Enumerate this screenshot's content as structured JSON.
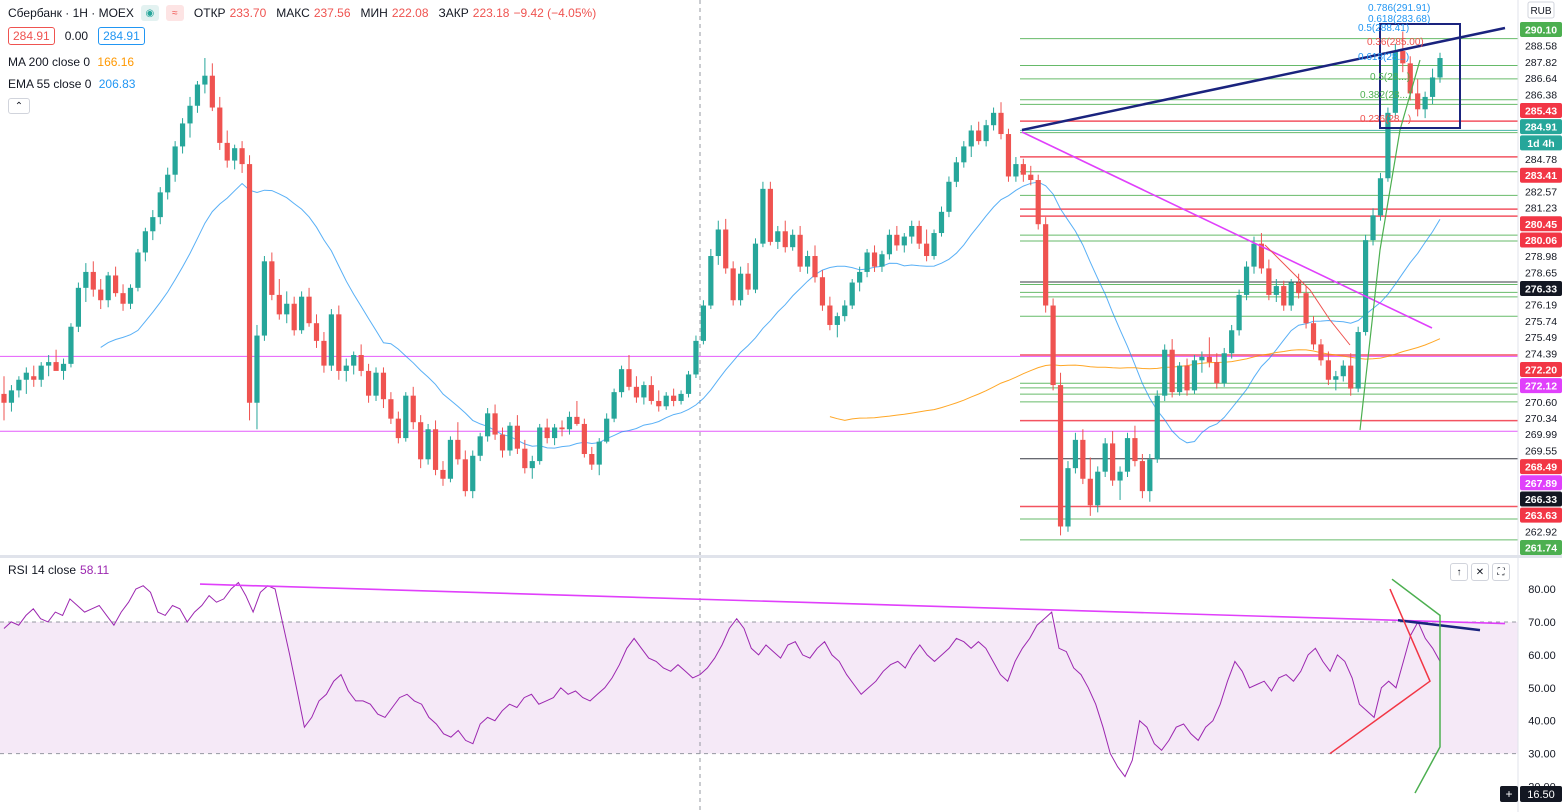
{
  "header": {
    "symbol": "Сбербанк · 1H · MOEX",
    "ohlc": [
      {
        "label": "ОТКР",
        "value": "233.70"
      },
      {
        "label": "МАКС",
        "value": "237.56"
      },
      {
        "label": "МИН",
        "value": "222.08"
      },
      {
        "label": "ЗАКР",
        "value": "223.18"
      }
    ],
    "change": "−9.42 (−4.05%)",
    "bid": "284.91",
    "spread": "0.00",
    "ask": "284.91"
  },
  "indicators": [
    {
      "name": "MA 200 close 0",
      "value": "166.16",
      "color": "#ff9800"
    },
    {
      "name": "EMA 55 close 0",
      "value": "206.83",
      "color": "#2196f3"
    }
  ],
  "currency": "RUB",
  "price_scale": {
    "ticks": [
      {
        "label": "290.10",
        "bg": "#4caf50",
        "fg": "#ffffff",
        "kind": "green"
      },
      {
        "label": "288.58",
        "bg": "#ffffff",
        "fg": "#131722",
        "kind": "plain"
      },
      {
        "label": "287.82",
        "bg": "#ffffff",
        "fg": "#131722",
        "kind": "plain"
      },
      {
        "label": "286.64",
        "bg": "#ffffff",
        "fg": "#131722",
        "kind": "plain"
      },
      {
        "label": "286.38",
        "bg": "#ffffff",
        "fg": "#131722",
        "kind": "plain"
      },
      {
        "label": "285.43",
        "bg": "#f23645",
        "fg": "#ffffff",
        "kind": "red"
      },
      {
        "label": "284.91",
        "bg": "#26a69a",
        "fg": "#ffffff",
        "kind": "teal"
      },
      {
        "label": "1d 4h",
        "bg": "#26a69a",
        "fg": "#ffffff",
        "kind": "teal"
      },
      {
        "label": "284.78",
        "bg": "#ffffff",
        "fg": "#131722",
        "kind": "plain"
      },
      {
        "label": "283.41",
        "bg": "#f23645",
        "fg": "#ffffff",
        "kind": "red"
      },
      {
        "label": "282.57",
        "bg": "#ffffff",
        "fg": "#131722",
        "kind": "plain"
      },
      {
        "label": "281.23",
        "bg": "#ffffff",
        "fg": "#131722",
        "kind": "plain"
      },
      {
        "label": "280.45",
        "bg": "#f23645",
        "fg": "#ffffff",
        "kind": "red"
      },
      {
        "label": "280.06",
        "bg": "#f23645",
        "fg": "#ffffff",
        "kind": "red"
      },
      {
        "label": "278.98",
        "bg": "#ffffff",
        "fg": "#131722",
        "kind": "plain"
      },
      {
        "label": "278.65",
        "bg": "#ffffff",
        "fg": "#131722",
        "kind": "plain"
      },
      {
        "label": "276.33",
        "bg": "#131722",
        "fg": "#ffffff",
        "kind": "dark"
      },
      {
        "label": "276.19",
        "bg": "#ffffff",
        "fg": "#131722",
        "kind": "plain"
      },
      {
        "label": "275.74",
        "bg": "#ffffff",
        "fg": "#131722",
        "kind": "plain"
      },
      {
        "label": "275.49",
        "bg": "#ffffff",
        "fg": "#131722",
        "kind": "plain"
      },
      {
        "label": "274.39",
        "bg": "#ffffff",
        "fg": "#131722",
        "kind": "plain"
      },
      {
        "label": "272.20",
        "bg": "#f23645",
        "fg": "#ffffff",
        "kind": "red"
      },
      {
        "label": "272.12",
        "bg": "#e040fb",
        "fg": "#ffffff",
        "kind": "magenta"
      },
      {
        "label": "270.60",
        "bg": "#ffffff",
        "fg": "#131722",
        "kind": "plain"
      },
      {
        "label": "270.34",
        "bg": "#ffffff",
        "fg": "#131722",
        "kind": "plain"
      },
      {
        "label": "269.99",
        "bg": "#ffffff",
        "fg": "#131722",
        "kind": "plain"
      },
      {
        "label": "269.55",
        "bg": "#ffffff",
        "fg": "#131722",
        "kind": "plain"
      },
      {
        "label": "268.49",
        "bg": "#f23645",
        "fg": "#ffffff",
        "kind": "red"
      },
      {
        "label": "267.89",
        "bg": "#e040fb",
        "fg": "#ffffff",
        "kind": "magenta"
      },
      {
        "label": "266.33",
        "bg": "#131722",
        "fg": "#ffffff",
        "kind": "dark"
      },
      {
        "label": "263.63",
        "bg": "#f23645",
        "fg": "#ffffff",
        "kind": "red"
      },
      {
        "label": "262.92",
        "bg": "#ffffff",
        "fg": "#131722",
        "kind": "plain"
      },
      {
        "label": "261.74",
        "bg": "#4caf50",
        "fg": "#ffffff",
        "kind": "green"
      }
    ]
  },
  "fib_labels": [
    "0.786(291.91)",
    "0.618(283.68)",
    "0.5(288.41)",
    "0.36(285.00)",
    "0.618(28...)",
    "0.5(28...)",
    "0.382(28...)",
    "0.236(28...)"
  ],
  "rsi": {
    "name": "RSI 14 close",
    "value": "58.11",
    "color": "#9c27b0",
    "ticks": [
      "80.00",
      "70.00",
      "60.00",
      "50.00",
      "40.00",
      "30.00",
      "20.00"
    ],
    "tick_values": [
      80,
      70,
      60,
      50,
      40,
      30,
      20
    ],
    "last_label": "16.50",
    "band": [
      30,
      70
    ],
    "range": [
      16.5,
      87
    ],
    "series": [
      68,
      70,
      69,
      72,
      74,
      71,
      70,
      73,
      72,
      77,
      75,
      73,
      74,
      75,
      72,
      69,
      73,
      76,
      80,
      81,
      79,
      73,
      72,
      75,
      74,
      70,
      73,
      75,
      78,
      76,
      77,
      80,
      82,
      78,
      73,
      79,
      81,
      80,
      70,
      60,
      49,
      38,
      41,
      46,
      48,
      52,
      54,
      49,
      46,
      46,
      45,
      42,
      41,
      44,
      47,
      48,
      46,
      45,
      41,
      39,
      36,
      35,
      37,
      34,
      33,
      39,
      41,
      40,
      43,
      45,
      44,
      47,
      48,
      45,
      46,
      47,
      50,
      48,
      49,
      47,
      46,
      48,
      50,
      53,
      57,
      62,
      65,
      62,
      59,
      58,
      56,
      55,
      57,
      55,
      53,
      54,
      56,
      59,
      63,
      68,
      71,
      68,
      62,
      60,
      63,
      61,
      59,
      63,
      64,
      60,
      59,
      62,
      64,
      60,
      58,
      54,
      51,
      48,
      50,
      52,
      55,
      57,
      58,
      56,
      60,
      63,
      60,
      58,
      60,
      62,
      65,
      64,
      62,
      64,
      62,
      58,
      54,
      52,
      58,
      62,
      65,
      69,
      71,
      73,
      62,
      61,
      56,
      54,
      50,
      45,
      38,
      30,
      26,
      23,
      28,
      40,
      38,
      33,
      31,
      34,
      38,
      39,
      36,
      34,
      38,
      40,
      45,
      52,
      58,
      55,
      50,
      51,
      52,
      49,
      53,
      54,
      52,
      55,
      60,
      62,
      58,
      55,
      60,
      58,
      53,
      45,
      43,
      41,
      50,
      52,
      50,
      58,
      66,
      70,
      65,
      62,
      58
    ],
    "trend_top": [
      81.5,
      69.5
    ],
    "trend_short": [
      70.5,
      67.5
    ]
  },
  "price_axis": {
    "min": 261.0,
    "max": 292.0
  },
  "candles": [
    [
      270,
      271,
      268.5,
      269.5
    ],
    [
      269.5,
      270.5,
      269,
      270.2
    ],
    [
      270.2,
      271,
      269.8,
      270.8
    ],
    [
      270.8,
      271.5,
      270,
      271.2
    ],
    [
      271,
      271.6,
      270.4,
      270.8
    ],
    [
      270.8,
      271.8,
      270.4,
      271.6
    ],
    [
      271.6,
      272.2,
      271,
      271.8
    ],
    [
      271.8,
      272.5,
      271.4,
      271.3
    ],
    [
      271.3,
      272,
      270.8,
      271.7
    ],
    [
      271.7,
      274,
      271.5,
      273.8
    ],
    [
      273.8,
      276.3,
      273.5,
      276
    ],
    [
      276,
      277.4,
      275.2,
      276.9
    ],
    [
      276.9,
      277.5,
      275.5,
      275.9
    ],
    [
      275.9,
      276.5,
      274.8,
      275.3
    ],
    [
      275.3,
      276.9,
      274.9,
      276.7
    ],
    [
      276.7,
      277.2,
      275.5,
      275.7
    ],
    [
      275.7,
      276.2,
      274.7,
      275.1
    ],
    [
      275.1,
      276.2,
      274.8,
      276
    ],
    [
      276,
      278.2,
      275.8,
      278
    ],
    [
      278,
      279.4,
      277.5,
      279.2
    ],
    [
      279.2,
      280.4,
      278.7,
      280
    ],
    [
      280,
      281.7,
      279.6,
      281.4
    ],
    [
      281.4,
      282.8,
      281,
      282.4
    ],
    [
      282.4,
      284.3,
      282,
      284
    ],
    [
      284,
      285.6,
      283.6,
      285.3
    ],
    [
      285.3,
      286.8,
      284.5,
      286.3
    ],
    [
      286.3,
      287.7,
      285.9,
      287.5
    ],
    [
      287.5,
      289,
      287,
      288
    ],
    [
      288,
      288.7,
      286,
      286.2
    ],
    [
      286.2,
      286.8,
      283.8,
      284.2
    ],
    [
      284.2,
      284.9,
      282.8,
      283.2
    ],
    [
      283.2,
      284.1,
      282.7,
      283.9
    ],
    [
      283.9,
      284.3,
      282.5,
      283
    ],
    [
      283,
      283.5,
      268.5,
      269.5
    ],
    [
      269.5,
      273.9,
      268,
      273.3
    ],
    [
      273.3,
      277.8,
      273,
      277.5
    ],
    [
      277.5,
      278,
      275.3,
      275.6
    ],
    [
      275.6,
      276.5,
      274.2,
      274.5
    ],
    [
      274.5,
      275.8,
      274,
      275.1
    ],
    [
      275.1,
      275.5,
      273.3,
      273.6
    ],
    [
      273.6,
      275.8,
      273.4,
      275.5
    ],
    [
      275.5,
      276,
      273.8,
      274
    ],
    [
      274,
      274.5,
      272.6,
      273
    ],
    [
      273,
      273.5,
      271.2,
      271.6
    ],
    [
      271.6,
      274.8,
      271.3,
      274.5
    ],
    [
      274.5,
      275,
      270.8,
      271.3
    ],
    [
      271.3,
      272,
      270.7,
      271.6
    ],
    [
      271.6,
      272.4,
      271.1,
      272.2
    ],
    [
      272.2,
      272.8,
      271,
      271.3
    ],
    [
      271.3,
      271.7,
      269.5,
      269.9
    ],
    [
      269.9,
      271.5,
      269.6,
      271.2
    ],
    [
      271.2,
      271.5,
      269.2,
      269.7
    ],
    [
      269.7,
      270.1,
      268.3,
      268.6
    ],
    [
      268.6,
      269,
      267.2,
      267.5
    ],
    [
      267.5,
      270.1,
      267.3,
      269.9
    ],
    [
      269.9,
      270.4,
      268,
      268.4
    ],
    [
      268.4,
      268.8,
      265.8,
      266.3
    ],
    [
      266.3,
      268.3,
      266,
      268
    ],
    [
      268,
      268.5,
      265.4,
      265.7
    ],
    [
      265.7,
      266.2,
      264.8,
      265.2
    ],
    [
      265.2,
      267.6,
      265,
      267.4
    ],
    [
      267.4,
      268.4,
      266,
      266.3
    ],
    [
      266.3,
      266.8,
      264.2,
      264.5
    ],
    [
      264.5,
      266.8,
      264.1,
      266.5
    ],
    [
      266.5,
      267.8,
      266.2,
      267.6
    ],
    [
      267.6,
      269.2,
      267.3,
      268.9
    ],
    [
      268.9,
      269.4,
      267.4,
      267.7
    ],
    [
      267.7,
      268.1,
      266.4,
      266.8
    ],
    [
      266.8,
      268.4,
      266.5,
      268.2
    ],
    [
      268.2,
      268.8,
      266.6,
      266.9
    ],
    [
      266.9,
      267.4,
      265.5,
      265.8
    ],
    [
      265.8,
      266.5,
      265.2,
      266.2
    ],
    [
      266.2,
      268.3,
      266,
      268.1
    ],
    [
      268.1,
      268.6,
      267.2,
      267.5
    ],
    [
      267.5,
      268.3,
      267.1,
      268.1
    ],
    [
      268.1,
      268.5,
      267.6,
      268
    ],
    [
      268,
      269,
      267.7,
      268.7
    ],
    [
      268.7,
      269.6,
      268.2,
      268.3
    ],
    [
      268.3,
      268.6,
      266.4,
      266.6
    ],
    [
      266.6,
      267,
      265.7,
      266
    ],
    [
      266,
      267.5,
      265.4,
      267.3
    ],
    [
      267.3,
      268.9,
      267.2,
      268.6
    ],
    [
      268.6,
      270.3,
      268.4,
      270.1
    ],
    [
      270.1,
      271.6,
      269.8,
      271.4
    ],
    [
      271.4,
      272.2,
      270.2,
      270.4
    ],
    [
      270.4,
      271,
      269.5,
      269.8
    ],
    [
      269.8,
      270.7,
      269.4,
      270.5
    ],
    [
      270.5,
      271,
      269.4,
      269.6
    ],
    [
      269.6,
      270.2,
      269,
      269.3
    ],
    [
      269.3,
      270.1,
      269.1,
      269.9
    ],
    [
      269.9,
      270.3,
      269.3,
      269.6
    ],
    [
      269.6,
      270.2,
      269.4,
      270
    ],
    [
      270,
      271.3,
      269.8,
      271.1
    ],
    [
      271.1,
      273.3,
      270.9,
      273
    ],
    [
      273,
      275.3,
      272.8,
      275
    ],
    [
      275,
      278.2,
      274.8,
      277.8
    ],
    [
      277.8,
      279.8,
      277.3,
      279.3
    ],
    [
      279.3,
      279.9,
      276.8,
      277.1
    ],
    [
      277.1,
      277.5,
      275,
      275.3
    ],
    [
      275.3,
      277.2,
      275,
      276.8
    ],
    [
      276.8,
      277.4,
      275.6,
      275.9
    ],
    [
      275.9,
      278.8,
      275.7,
      278.5
    ],
    [
      278.5,
      282,
      278.3,
      281.6
    ],
    [
      281.6,
      282,
      278.4,
      278.6
    ],
    [
      278.6,
      279.5,
      278.2,
      279.2
    ],
    [
      279.2,
      279.8,
      278,
      278.3
    ],
    [
      278.3,
      279.3,
      278.1,
      279
    ],
    [
      279,
      279.5,
      276.9,
      277.2
    ],
    [
      277.2,
      278.1,
      276.8,
      277.8
    ],
    [
      277.8,
      278.4,
      276.3,
      276.6
    ],
    [
      276.6,
      277,
      274.7,
      275
    ],
    [
      275,
      275.5,
      273.6,
      273.9
    ],
    [
      273.9,
      274.6,
      273.2,
      274.4
    ],
    [
      274.4,
      275.3,
      274.1,
      275
    ],
    [
      275,
      276.5,
      274.8,
      276.3
    ],
    [
      276.3,
      277.2,
      275.8,
      276.9
    ],
    [
      276.9,
      278.2,
      276.6,
      278
    ],
    [
      278,
      278.4,
      276.9,
      277.2
    ],
    [
      277.2,
      278.1,
      276.9,
      277.9
    ],
    [
      277.9,
      279.3,
      277.6,
      279
    ],
    [
      279,
      279.5,
      278.1,
      278.4
    ],
    [
      278.4,
      279.1,
      278,
      278.9
    ],
    [
      278.9,
      279.8,
      278.5,
      279.5
    ],
    [
      279.5,
      279.8,
      278.2,
      278.5
    ],
    [
      278.5,
      279.3,
      277.5,
      277.8
    ],
    [
      277.8,
      279.3,
      277.6,
      279.1
    ],
    [
      279.1,
      280.6,
      278.9,
      280.3
    ],
    [
      280.3,
      282.3,
      280,
      282
    ],
    [
      282,
      283.4,
      281.7,
      283.1
    ],
    [
      283.1,
      284.3,
      282.8,
      284
    ],
    [
      284,
      285.2,
      283.4,
      284.9
    ],
    [
      284.9,
      285.4,
      284.1,
      284.3
    ],
    [
      284.3,
      285.5,
      284,
      285.2
    ],
    [
      285.2,
      286.2,
      284.9,
      285.9
    ],
    [
      285.9,
      286.5,
      284.4,
      284.7
    ],
    [
      284.7,
      285,
      282,
      282.3
    ],
    [
      282.3,
      283.4,
      282,
      283
    ],
    [
      283,
      283.3,
      282,
      282.4
    ],
    [
      282.4,
      282.9,
      281.8,
      282.1
    ],
    [
      282.1,
      282.4,
      279.3,
      279.6
    ],
    [
      279.6,
      280,
      274.6,
      275
    ],
    [
      275,
      275.4,
      270.2,
      270.5
    ],
    [
      270.5,
      271.2,
      262,
      262.5
    ],
    [
      262.5,
      266.2,
      262.2,
      265.8
    ],
    [
      265.8,
      267.8,
      265.5,
      267.4
    ],
    [
      267.4,
      268,
      264.9,
      265.2
    ],
    [
      265.2,
      266.4,
      263.1,
      263.7
    ],
    [
      263.7,
      265.9,
      263.3,
      265.6
    ],
    [
      265.6,
      267.5,
      265.3,
      267.2
    ],
    [
      267.2,
      267.9,
      264.8,
      265.1
    ],
    [
      265.1,
      265.9,
      264,
      265.6
    ],
    [
      265.6,
      267.8,
      265.3,
      267.5
    ],
    [
      267.5,
      268.2,
      265.9,
      266.2
    ],
    [
      266.2,
      266.6,
      264.1,
      264.5
    ],
    [
      264.5,
      266.6,
      263.9,
      266.3
    ],
    [
      266.3,
      270.2,
      266.1,
      269.9
    ],
    [
      269.9,
      272.8,
      269.6,
      272.5
    ],
    [
      272.5,
      273.1,
      269.8,
      270.1
    ],
    [
      270.1,
      271.8,
      269.9,
      271.6
    ],
    [
      271.6,
      272,
      269.9,
      270.2
    ],
    [
      270.2,
      272.2,
      270,
      271.9
    ],
    [
      271.9,
      272.4,
      271.2,
      272.1
    ],
    [
      272.1,
      273.2,
      271.5,
      271.8
    ],
    [
      271.8,
      272.3,
      270.3,
      270.6
    ],
    [
      270.6,
      272.6,
      270.4,
      272.3
    ],
    [
      272.3,
      273.9,
      272,
      273.6
    ],
    [
      273.6,
      275.9,
      273.3,
      275.6
    ],
    [
      275.6,
      277.5,
      275.3,
      277.2
    ],
    [
      277.2,
      278.9,
      276.8,
      278.5
    ],
    [
      278.5,
      279.1,
      276.8,
      277.1
    ],
    [
      277.1,
      277.6,
      275.3,
      275.6
    ],
    [
      275.6,
      276.5,
      275.2,
      276.1
    ],
    [
      276.1,
      276.4,
      274.7,
      275
    ],
    [
      275,
      276.5,
      274.7,
      276.3
    ],
    [
      276.3,
      276.8,
      275.4,
      275.7
    ],
    [
      275.7,
      276.1,
      273.7,
      274
    ],
    [
      274,
      274.4,
      272.5,
      272.8
    ],
    [
      272.8,
      273.1,
      271.6,
      271.9
    ],
    [
      271.9,
      272.4,
      270.5,
      270.8
    ],
    [
      270.8,
      271.3,
      270.2,
      271
    ],
    [
      271,
      271.9,
      270.7,
      271.6
    ],
    [
      271.6,
      272.3,
      269.9,
      270.3
    ],
    [
      270.3,
      273.8,
      270.1,
      273.5
    ],
    [
      273.5,
      279,
      273.3,
      278.7
    ],
    [
      278.7,
      280.5,
      278.4,
      280.1
    ],
    [
      280.1,
      282.5,
      279.8,
      282.2
    ],
    [
      282.2,
      286.2,
      282,
      285.9
    ],
    [
      285.9,
      289.8,
      285.6,
      289.4
    ],
    [
      289.4,
      290.5,
      288.2,
      288.7
    ],
    [
      288.7,
      289.1,
      286.6,
      287
    ],
    [
      287,
      287.8,
      285.7,
      286.1
    ],
    [
      286.1,
      287.1,
      285.6,
      286.8
    ],
    [
      286.8,
      288.4,
      286.4,
      287.9
    ],
    [
      287.9,
      289.3,
      287.6,
      289
    ]
  ]
}
